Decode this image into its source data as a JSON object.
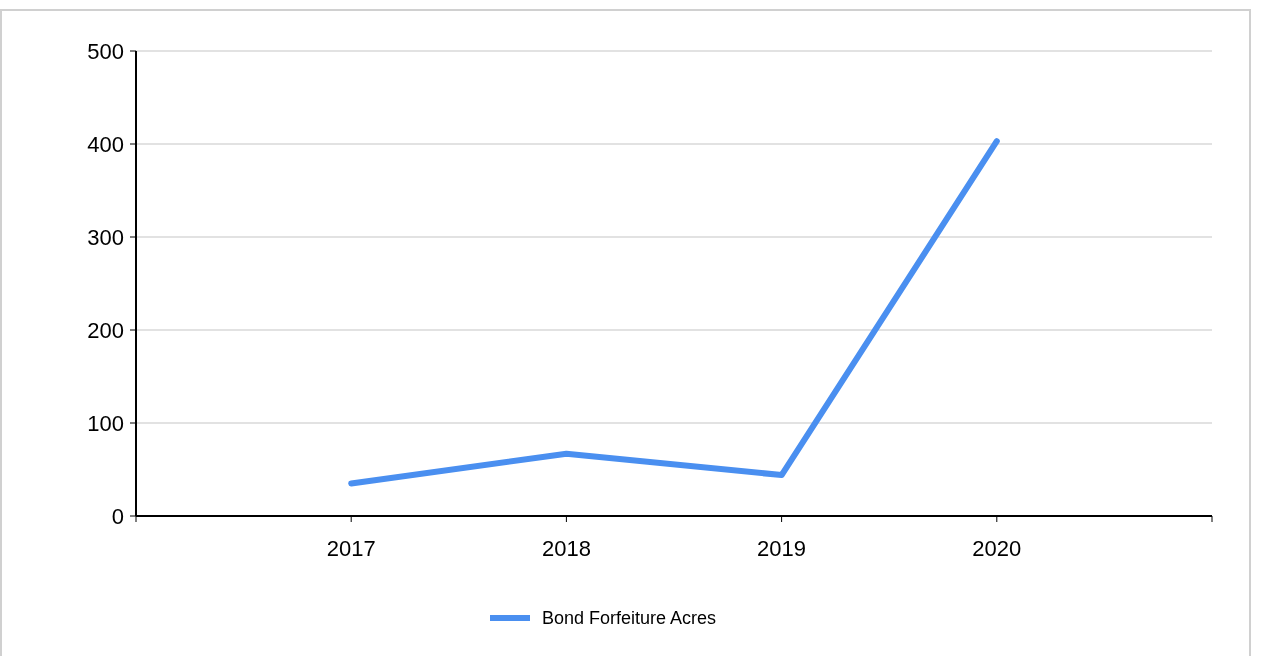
{
  "chart_data": {
    "type": "line",
    "x": [
      2017,
      2018,
      2019,
      2020
    ],
    "xlim": [
      2016,
      2021
    ],
    "xticks": [
      2017,
      2018,
      2019,
      2020
    ],
    "ylim": [
      0,
      500
    ],
    "yticks": [
      0,
      100,
      200,
      300,
      400,
      500
    ],
    "grid": "y",
    "legend": "bottom",
    "marker": "none",
    "line_style": "solid",
    "series": [
      {
        "name": "Bond Forfeiture Acres",
        "color": "#4a8ff0",
        "values": [
          35,
          67,
          44,
          403
        ]
      }
    ]
  }
}
